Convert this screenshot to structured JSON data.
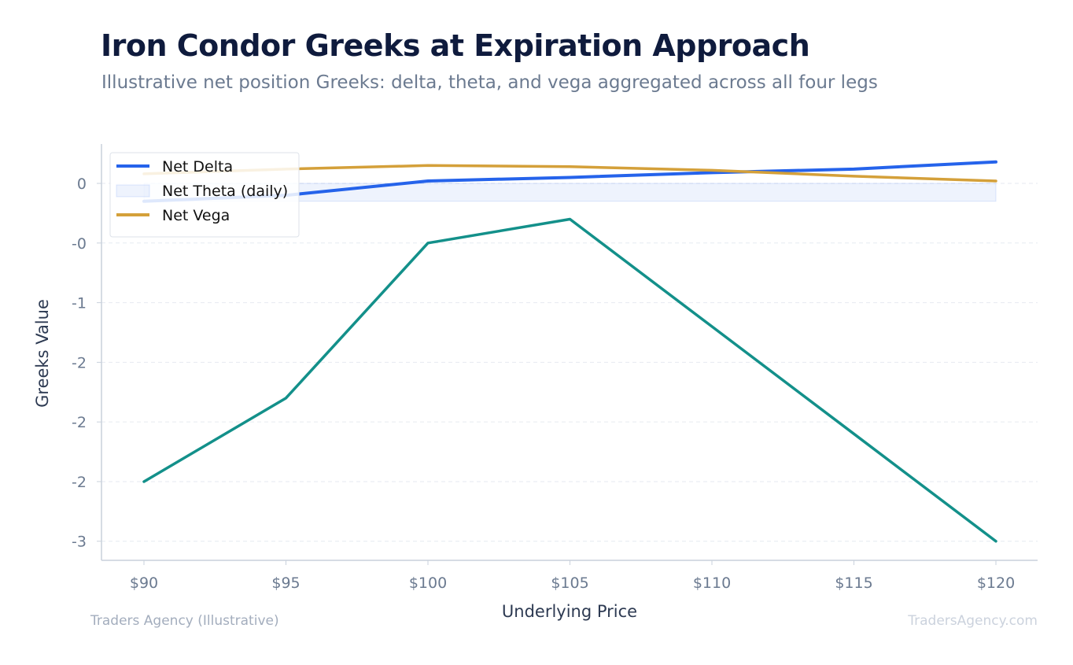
{
  "title": "Iron Condor Greeks at Expiration Approach",
  "subtitle": "Illustrative net position Greeks: delta, theta, and vega aggregated across all four legs",
  "footer": {
    "left": "Traders Agency (Illustrative)",
    "right": "TradersAgency.com"
  },
  "chart_data": {
    "type": "line",
    "title": "Iron Condor Greeks at Expiration Approach",
    "subtitle": "Illustrative net position Greeks: delta, theta, and vega aggregated across all four legs",
    "xlabel": "Underlying Price",
    "ylabel": "Greeks Value",
    "x": [
      90,
      95,
      100,
      105,
      110,
      115,
      120
    ],
    "x_tick_labels": [
      "$90",
      "$95",
      "$100",
      "$105",
      "$110",
      "$115",
      "$120"
    ],
    "y_ticks": [
      0,
      -0.5,
      -1,
      -1.5,
      -2,
      -2.5,
      -3
    ],
    "y_tick_labels": [
      "0",
      "-0",
      "-1",
      "-2",
      "-2",
      "-2",
      "-3"
    ],
    "ylim": [
      -3.16,
      0.33
    ],
    "grid": true,
    "legend_position": "top-left",
    "series": [
      {
        "name": "Net Delta",
        "style": "line",
        "color": "#2563eb",
        "values": [
          -0.15,
          -0.1,
          0.02,
          0.05,
          0.09,
          0.12,
          0.18
        ]
      },
      {
        "name": "Net Theta (daily)",
        "style": "area",
        "color": "#2563eb",
        "values": [
          -0.15,
          -0.15,
          -0.15,
          -0.15,
          -0.15,
          -0.15,
          -0.15
        ]
      },
      {
        "name": "Net Vega",
        "style": "line",
        "color": "#d4a03a",
        "values": [
          0.08,
          0.12,
          0.15,
          0.14,
          0.11,
          0.06,
          0.02
        ]
      },
      {
        "name": "",
        "style": "line",
        "color": "#13908a",
        "values": [
          -2.5,
          -1.8,
          -0.5,
          -0.3,
          -1.2,
          -2.1,
          -3.0
        ]
      }
    ]
  }
}
